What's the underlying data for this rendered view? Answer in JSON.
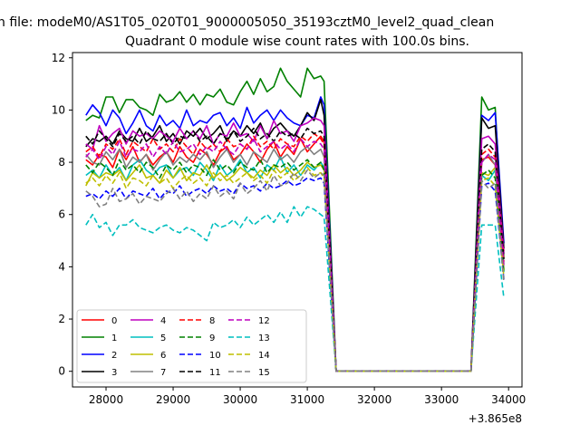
{
  "chart_data": {
    "type": "line",
    "suptitle": "n file: modeM0/AS1T05_020T01_9000005050_35193cztM0_level2_quad_clean",
    "title": "Quadrant 0 module wise count rates with 100.0s bins.",
    "xlabel": "",
    "ylabel": "",
    "x_offset_label": "+3.865e8",
    "xlim": [
      27500,
      34200
    ],
    "ylim": [
      -0.6,
      12.2
    ],
    "xticks": [
      28000,
      29000,
      30000,
      31000,
      32000,
      33000,
      34000
    ],
    "yticks": [
      0,
      2,
      4,
      6,
      8,
      10,
      12
    ],
    "grid": false,
    "legend_position": "lower-left",
    "legend_columns": 4,
    "x": [
      27700,
      27800,
      27900,
      28000,
      28100,
      28200,
      28300,
      28400,
      28500,
      28600,
      28700,
      28800,
      28900,
      29000,
      29100,
      29200,
      29300,
      29400,
      29500,
      29600,
      29700,
      29800,
      29900,
      30000,
      30100,
      30200,
      30300,
      30400,
      30500,
      30600,
      30700,
      30800,
      30900,
      31000,
      31100,
      31200,
      31250,
      31430,
      33440,
      33600,
      33700,
      33800,
      33930
    ],
    "series": [
      {
        "name": "0",
        "color": "#ff0000",
        "dash": "solid",
        "values": [
          8.1,
          7.9,
          8.3,
          8.2,
          7.8,
          8.5,
          8.1,
          8.6,
          8.0,
          8.3,
          7.9,
          8.2,
          8.4,
          8.0,
          8.6,
          8.2,
          8.0,
          8.5,
          8.3,
          7.9,
          8.4,
          8.6,
          8.1,
          8.3,
          8.7,
          8.4,
          8.0,
          8.5,
          8.8,
          8.2,
          8.6,
          8.3,
          8.9,
          8.4,
          8.7,
          9.0,
          8.8,
          0.0,
          0.0,
          8.1,
          8.2,
          7.9,
          4.6
        ]
      },
      {
        "name": "1",
        "color": "#008000",
        "dash": "solid",
        "values": [
          9.6,
          9.8,
          9.7,
          10.5,
          10.5,
          9.9,
          10.4,
          10.4,
          10.1,
          10.0,
          9.8,
          10.6,
          10.3,
          10.4,
          10.7,
          10.3,
          10.6,
          10.2,
          10.6,
          10.5,
          10.8,
          10.3,
          10.2,
          10.7,
          11.1,
          10.6,
          11.2,
          10.7,
          10.9,
          11.6,
          11.1,
          10.8,
          10.5,
          11.6,
          11.2,
          11.3,
          11.1,
          0.0,
          0.0,
          10.5,
          10.0,
          10.1,
          4.3
        ]
      },
      {
        "name": "2",
        "color": "#0000ff",
        "dash": "solid",
        "values": [
          9.8,
          10.2,
          9.9,
          9.4,
          10.0,
          9.7,
          9.1,
          9.5,
          10.0,
          9.4,
          9.2,
          9.8,
          9.4,
          9.6,
          9.3,
          10.0,
          9.4,
          9.6,
          9.5,
          9.8,
          9.9,
          9.4,
          9.7,
          9.3,
          10.1,
          9.5,
          9.8,
          10.0,
          9.6,
          10.0,
          9.7,
          9.5,
          9.4,
          9.8,
          9.7,
          10.5,
          10.2,
          0.0,
          0.0,
          9.8,
          9.6,
          9.9,
          4.9
        ]
      },
      {
        "name": "3",
        "color": "#000000",
        "dash": "solid",
        "values": [
          8.6,
          8.9,
          8.8,
          9.0,
          8.7,
          9.2,
          8.9,
          8.8,
          9.3,
          8.8,
          9.0,
          9.4,
          8.8,
          9.1,
          8.7,
          9.2,
          9.0,
          9.3,
          8.9,
          9.1,
          9.4,
          8.8,
          9.2,
          9.0,
          9.4,
          9.1,
          9.5,
          8.9,
          9.3,
          9.5,
          9.2,
          9.0,
          9.4,
          9.9,
          9.6,
          10.4,
          9.8,
          0.0,
          0.0,
          9.7,
          9.3,
          9.4,
          4.7
        ]
      },
      {
        "name": "4",
        "color": "#bf00bf",
        "dash": "solid",
        "values": [
          8.7,
          8.5,
          9.4,
          8.8,
          9.1,
          9.3,
          8.7,
          9.2,
          9.0,
          9.1,
          8.9,
          9.2,
          9.0,
          8.8,
          9.3,
          8.9,
          9.2,
          8.9,
          9.4,
          8.7,
          9.1,
          9.0,
          9.5,
          9.0,
          9.1,
          8.8,
          9.4,
          8.9,
          9.6,
          9.1,
          9.2,
          8.8,
          9.4,
          9.5,
          9.7,
          9.6,
          9.4,
          0.0,
          0.0,
          8.9,
          9.0,
          8.7,
          4.5
        ]
      },
      {
        "name": "5",
        "color": "#00bfbf",
        "dash": "solid",
        "values": [
          7.5,
          7.7,
          7.4,
          7.9,
          7.5,
          7.8,
          7.3,
          7.9,
          8.1,
          7.7,
          7.5,
          7.8,
          7.9,
          7.4,
          7.7,
          7.8,
          7.5,
          8.0,
          7.7,
          7.3,
          7.9,
          7.5,
          7.7,
          8.1,
          7.6,
          7.8,
          7.4,
          7.9,
          7.7,
          8.2,
          7.6,
          7.9,
          7.5,
          7.9,
          7.7,
          8.0,
          7.8,
          0.0,
          0.0,
          7.5,
          7.3,
          7.7,
          3.8
        ]
      },
      {
        "name": "6",
        "color": "#bfbf00",
        "dash": "solid",
        "values": [
          7.1,
          7.6,
          7.4,
          7.6,
          7.5,
          7.7,
          7.3,
          7.6,
          7.9,
          7.4,
          7.5,
          7.2,
          7.7,
          7.4,
          7.8,
          7.3,
          7.6,
          7.5,
          7.9,
          7.4,
          7.6,
          7.3,
          7.5,
          7.8,
          7.6,
          7.4,
          7.7,
          7.5,
          7.9,
          7.6,
          7.8,
          7.5,
          7.7,
          8.0,
          7.8,
          7.9,
          7.7,
          0.0,
          0.0,
          7.6,
          7.5,
          7.8,
          3.9
        ]
      },
      {
        "name": "7",
        "color": "#808080",
        "dash": "solid",
        "values": [
          8.3,
          8.0,
          7.9,
          8.4,
          8.1,
          8.5,
          7.8,
          8.2,
          8.0,
          8.3,
          7.7,
          8.1,
          8.4,
          7.9,
          8.2,
          8.0,
          8.3,
          8.1,
          8.4,
          7.8,
          8.2,
          8.5,
          8.0,
          8.3,
          7.9,
          8.4,
          8.2,
          8.0,
          8.5,
          8.1,
          8.3,
          8.0,
          8.4,
          8.6,
          8.3,
          8.5,
          8.2,
          0.0,
          0.0,
          8.0,
          8.3,
          7.9,
          4.1
        ]
      },
      {
        "name": "8",
        "color": "#ff0000",
        "dash": "dashed",
        "values": [
          8.4,
          8.6,
          8.2,
          8.7,
          8.5,
          8.9,
          8.3,
          8.8,
          8.6,
          8.4,
          8.9,
          8.5,
          8.7,
          8.4,
          8.9,
          8.6,
          8.3,
          8.8,
          8.5,
          8.7,
          8.4,
          8.9,
          8.6,
          8.7,
          8.5,
          9.0,
          8.6,
          8.8,
          8.5,
          8.9,
          8.7,
          8.6,
          9.0,
          8.8,
          9.1,
          8.9,
          8.7,
          0.0,
          0.0,
          8.3,
          8.5,
          8.2,
          4.2
        ]
      },
      {
        "name": "9",
        "color": "#008000",
        "dash": "dashed",
        "values": [
          7.9,
          7.6,
          8.0,
          7.8,
          7.5,
          8.1,
          7.7,
          7.9,
          7.6,
          8.0,
          7.8,
          7.4,
          7.9,
          7.7,
          8.0,
          7.6,
          7.9,
          7.8,
          7.5,
          8.1,
          7.7,
          7.9,
          7.6,
          8.0,
          7.8,
          7.7,
          8.1,
          7.6,
          7.9,
          7.8,
          8.0,
          7.7,
          7.9,
          8.1,
          7.8,
          8.0,
          7.7,
          0.0,
          0.0,
          7.5,
          7.7,
          7.4,
          3.8
        ]
      },
      {
        "name": "10",
        "color": "#0000ff",
        "dash": "dashed",
        "values": [
          6.7,
          6.8,
          6.6,
          6.9,
          6.7,
          7.0,
          6.6,
          6.9,
          6.8,
          6.7,
          7.0,
          6.6,
          6.9,
          6.8,
          7.1,
          6.7,
          6.9,
          7.0,
          6.8,
          7.1,
          6.9,
          7.0,
          6.8,
          7.2,
          7.0,
          7.1,
          6.9,
          7.2,
          7.0,
          7.1,
          7.3,
          7.1,
          7.2,
          7.4,
          7.3,
          7.4,
          7.2,
          0.0,
          0.0,
          7.1,
          7.2,
          6.9,
          3.5
        ]
      },
      {
        "name": "11",
        "color": "#000000",
        "dash": "dashed",
        "values": [
          9.0,
          8.7,
          9.2,
          8.9,
          8.6,
          9.1,
          8.8,
          9.0,
          8.7,
          9.2,
          8.9,
          8.8,
          9.1,
          8.7,
          9.0,
          8.9,
          9.2,
          8.8,
          9.0,
          8.7,
          9.1,
          8.9,
          9.2,
          8.8,
          9.0,
          9.3,
          8.9,
          9.1,
          8.8,
          9.2,
          9.0,
          9.1,
          8.9,
          9.3,
          9.1,
          9.2,
          9.0,
          0.0,
          0.0,
          8.5,
          8.7,
          8.4,
          4.3
        ]
      },
      {
        "name": "12",
        "color": "#bf00bf",
        "dash": "dashed",
        "values": [
          8.2,
          8.5,
          8.1,
          8.6,
          8.3,
          8.8,
          8.2,
          8.5,
          8.4,
          8.7,
          8.2,
          8.6,
          8.3,
          8.8,
          8.4,
          8.5,
          8.7,
          8.3,
          8.6,
          8.4,
          8.8,
          8.5,
          8.3,
          8.7,
          8.5,
          8.9,
          8.4,
          8.6,
          8.8,
          8.5,
          8.7,
          8.4,
          8.9,
          8.6,
          8.8,
          8.7,
          8.5,
          0.0,
          0.0,
          8.0,
          8.3,
          8.1,
          4.0
        ]
      },
      {
        "name": "13",
        "color": "#00bfbf",
        "dash": "dashed",
        "values": [
          5.6,
          6.0,
          5.5,
          5.7,
          5.2,
          5.6,
          5.6,
          5.8,
          5.5,
          5.4,
          5.3,
          5.5,
          5.6,
          5.4,
          5.3,
          5.5,
          5.4,
          5.2,
          5.0,
          5.7,
          5.5,
          5.6,
          5.8,
          5.5,
          5.9,
          5.6,
          5.8,
          6.0,
          5.7,
          6.1,
          5.7,
          6.3,
          5.9,
          6.3,
          6.2,
          6.0,
          5.9,
          0.0,
          0.0,
          5.6,
          5.6,
          5.6,
          2.8
        ]
      },
      {
        "name": "14",
        "color": "#bfbf00",
        "dash": "dashed",
        "values": [
          7.2,
          7.4,
          7.1,
          7.5,
          7.2,
          7.6,
          7.0,
          7.4,
          7.3,
          7.1,
          7.5,
          7.2,
          7.4,
          7.0,
          7.3,
          7.5,
          7.2,
          7.4,
          7.1,
          7.6,
          7.3,
          7.5,
          7.2,
          7.4,
          7.6,
          7.3,
          7.5,
          7.2,
          7.7,
          7.4,
          7.6,
          7.3,
          7.5,
          7.8,
          7.5,
          7.6,
          7.4,
          0.0,
          0.0,
          7.3,
          7.4,
          7.1,
          3.6
        ]
      },
      {
        "name": "15",
        "color": "#808080",
        "dash": "dashed",
        "values": [
          6.9,
          6.7,
          6.3,
          6.4,
          7.0,
          6.5,
          6.6,
          6.8,
          6.4,
          6.7,
          6.6,
          6.5,
          6.8,
          7.0,
          6.6,
          6.9,
          6.5,
          6.8,
          6.6,
          7.1,
          6.7,
          6.9,
          6.6,
          7.2,
          6.8,
          7.0,
          7.3,
          6.9,
          7.5,
          7.1,
          7.2,
          7.6,
          7.3,
          7.7,
          7.4,
          7.6,
          7.5,
          0.0,
          0.0,
          7.3,
          7.0,
          7.2,
          3.4
        ]
      }
    ]
  }
}
